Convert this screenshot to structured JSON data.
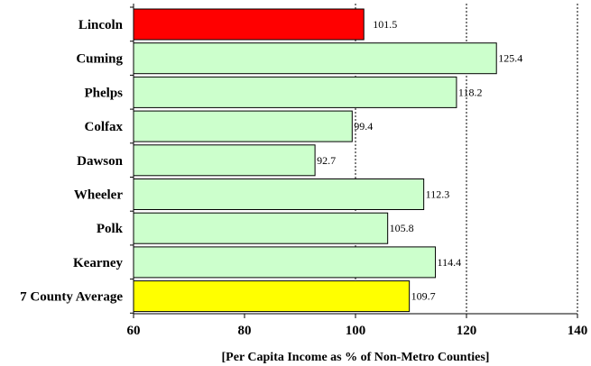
{
  "chart_data": {
    "type": "bar",
    "orientation": "horizontal",
    "categories": [
      "Lincoln",
      "Cuming",
      "Phelps",
      "Colfax",
      "Dawson",
      "Wheeler",
      "Polk",
      "Kearney",
      "7 County Average"
    ],
    "values": [
      101.5,
      125.4,
      118.2,
      99.4,
      92.7,
      112.3,
      105.8,
      114.4,
      109.7
    ],
    "data_labels": [
      "101.5",
      "125.4",
      "118.2",
      "99.4",
      "92.7",
      "112.3",
      "105.8",
      "114.4",
      "109.7"
    ],
    "bar_colors": [
      "#ff0000",
      "#ccffcc",
      "#ccffcc",
      "#ccffcc",
      "#ccffcc",
      "#ccffcc",
      "#ccffcc",
      "#ccffcc",
      "#ffff00"
    ],
    "xlabel": "[Per Capita Income as % of Non-Metro Counties]",
    "xlim": [
      60,
      140
    ],
    "xticks": [
      60,
      80,
      100,
      120,
      140
    ],
    "tick_labels": [
      "60",
      "80",
      "100",
      "120",
      "140"
    ],
    "gridlines": [
      100,
      120,
      140
    ],
    "grid_style": "dashed vertical",
    "legend": "none"
  }
}
